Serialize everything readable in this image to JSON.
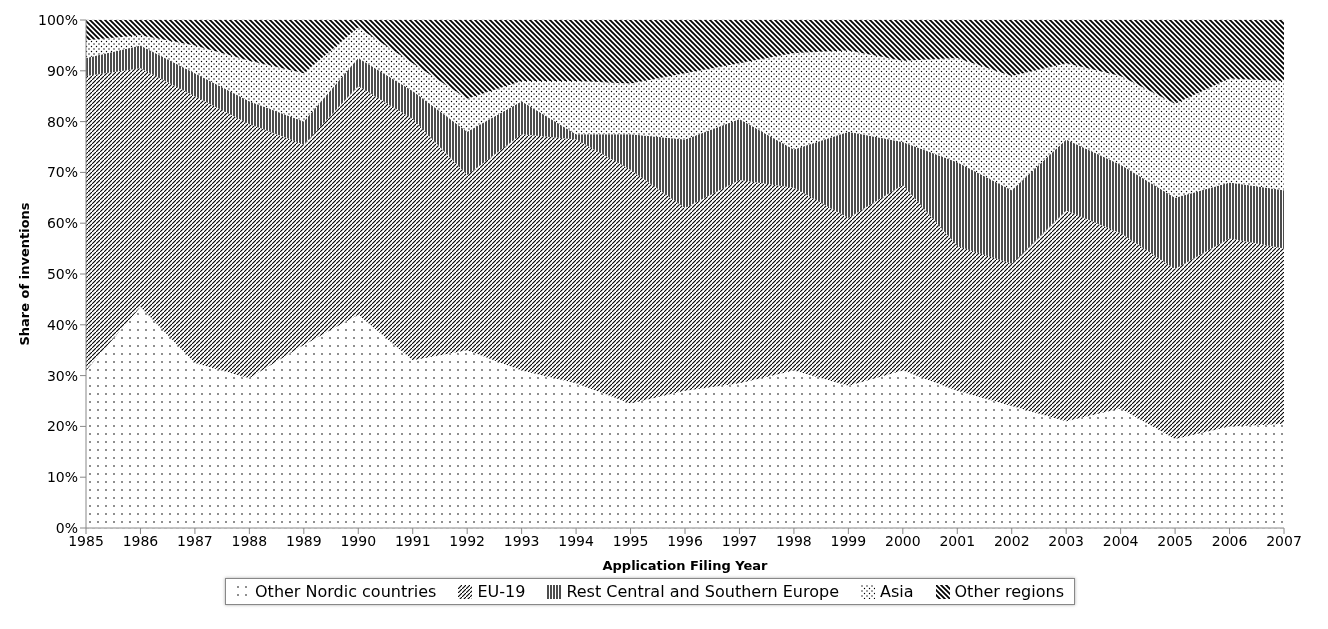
{
  "chart_data": {
    "type": "area",
    "stacked": true,
    "ylabel": "Share of inventions",
    "xlabel": "Application  Filing Year",
    "categories": [
      "1985",
      "1986",
      "1987",
      "1988",
      "1989",
      "1990",
      "1991",
      "1992",
      "1993",
      "1994",
      "1995",
      "1996",
      "1997",
      "1998",
      "1999",
      "2000",
      "2001",
      "2002",
      "2003",
      "2004",
      "2005",
      "2006",
      "2007"
    ],
    "series": [
      {
        "name": "Other Nordic countries",
        "color": "#000000",
        "values": [
          31,
          43.5,
          32.5,
          29.5,
          36,
          42,
          33,
          35,
          31,
          28.5,
          24.5,
          27,
          28.5,
          31,
          28,
          31,
          27,
          24,
          21,
          23.5,
          17.5,
          20,
          20.5
        ]
      },
      {
        "name": "EU-19",
        "color": "#000000",
        "values": [
          58,
          47,
          52.5,
          50,
          39.5,
          45,
          47.5,
          34.5,
          46.5,
          48,
          46,
          36,
          40,
          36,
          33,
          36.5,
          28.5,
          28,
          41.5,
          34.5,
          33.5,
          37,
          34.5
        ]
      },
      {
        "name": "Rest Central and Southern Europe",
        "color": "#000000",
        "values": [
          3.5,
          4.5,
          4.5,
          4.5,
          4.5,
          5.5,
          5.5,
          8.5,
          6.5,
          1,
          7,
          13.5,
          12,
          7.5,
          17,
          8.5,
          16.5,
          14.5,
          14,
          13.5,
          14,
          11,
          11.5
        ]
      },
      {
        "name": "Asia",
        "color": "#000000",
        "values": [
          3.5,
          2,
          5.5,
          8,
          9.5,
          6,
          5.5,
          6.5,
          4,
          10.5,
          10,
          13,
          11,
          19,
          16,
          16,
          20.5,
          22.5,
          15,
          17.5,
          18.5,
          20.5,
          21.5
        ]
      },
      {
        "name": "Other regions",
        "color": "#000000",
        "values": [
          4,
          3,
          5,
          8,
          10.5,
          1.5,
          8.5,
          15.5,
          12,
          12,
          12.5,
          10.5,
          8.5,
          6.5,
          6,
          8,
          7.5,
          11,
          8.5,
          11,
          16.5,
          11.5,
          12
        ]
      }
    ],
    "ylim": [
      0,
      100
    ],
    "yticks": [
      {
        "value": 0,
        "label": "0%"
      },
      {
        "value": 10,
        "label": "10%"
      },
      {
        "value": 20,
        "label": "20%"
      },
      {
        "value": 30,
        "label": "30%"
      },
      {
        "value": 40,
        "label": "40%"
      },
      {
        "value": 50,
        "label": "50%"
      },
      {
        "value": 60,
        "label": "60%"
      },
      {
        "value": 70,
        "label": "70%"
      },
      {
        "value": 80,
        "label": "80%"
      },
      {
        "value": 90,
        "label": "90%"
      },
      {
        "value": 100,
        "label": "100%"
      }
    ],
    "grid": "y",
    "legend": "bottom"
  }
}
